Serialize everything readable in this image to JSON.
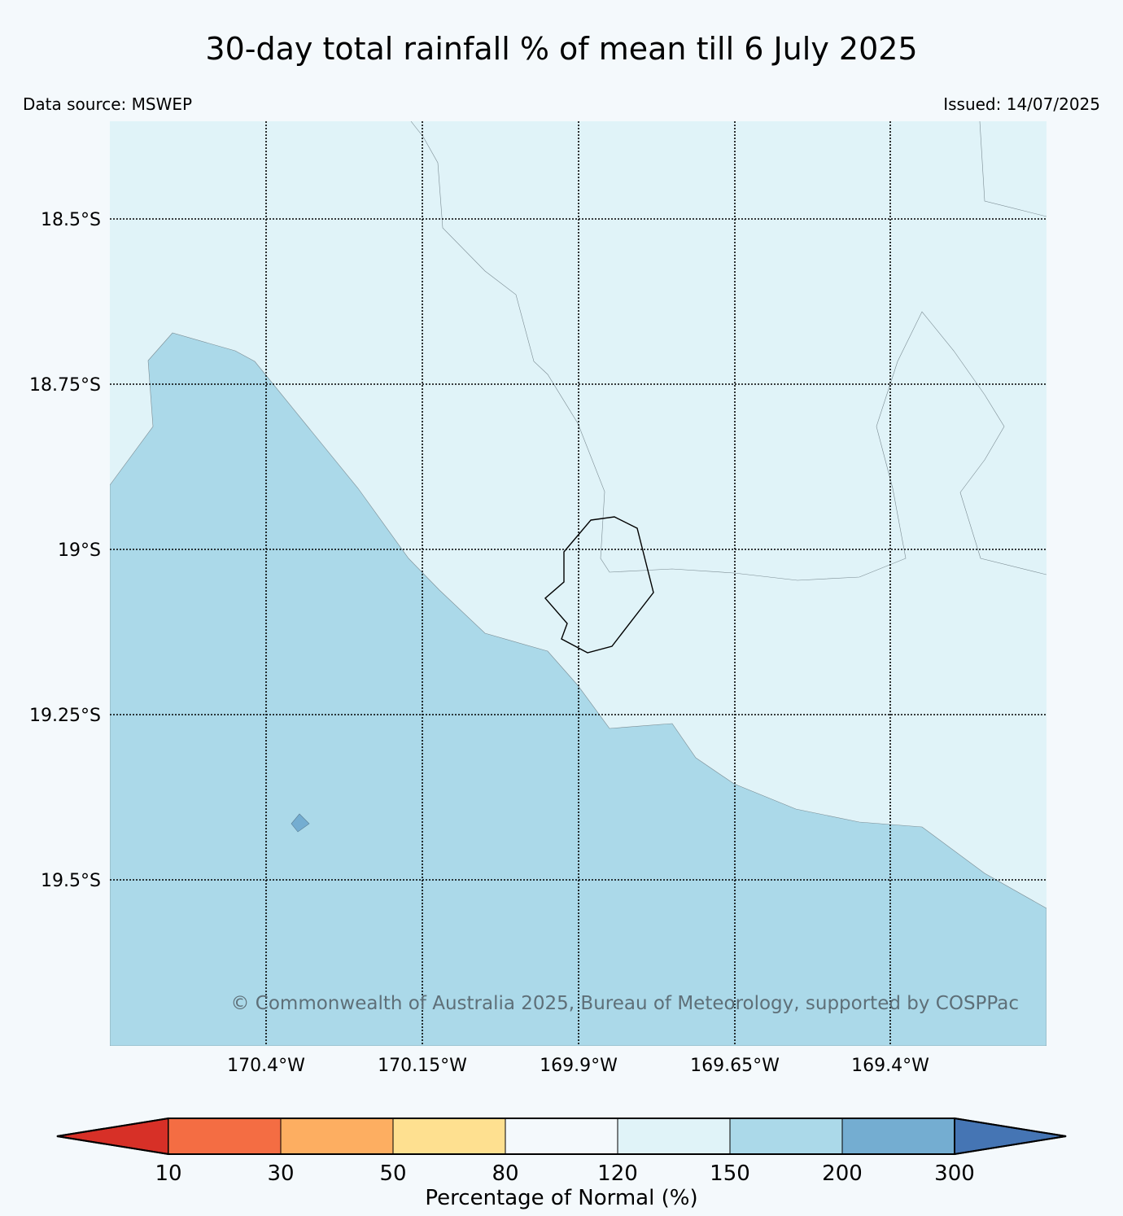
{
  "title": "30-day total rainfall % of mean till 6 July 2025",
  "data_source": "Data source: MSWEP",
  "issued": "Issued: 14/07/2025",
  "copyright": "© Commonwealth of Australia 2025, Bureau of Meteorology, supported by COSPPac",
  "map": {
    "lat_labels": [
      "18.5°S",
      "18.75°S",
      "19°S",
      "19.25°S",
      "19.5°S"
    ],
    "lon_labels": [
      "170.4°W",
      "170.15°W",
      "169.9°W",
      "169.65°W",
      "169.4°W"
    ],
    "region_colors": {
      "range_120_150": "#e0f3f8",
      "range_150_200": "#abd9e9",
      "range_200_300": "#74add1",
      "land_outline": "#000000"
    }
  },
  "colorbar": {
    "label": "Percentage of Normal (%)",
    "ticks": [
      "10",
      "30",
      "50",
      "80",
      "120",
      "150",
      "200",
      "300"
    ],
    "colors": {
      "below_10": "#d73027",
      "10_30": "#f46d43",
      "30_50": "#fdae61",
      "50_80": "#fee090",
      "80_120": "#f4f9fc",
      "120_150": "#e0f3f8",
      "150_200": "#abd9e9",
      "200_300": "#74add1",
      "above_300": "#4575b4"
    }
  }
}
